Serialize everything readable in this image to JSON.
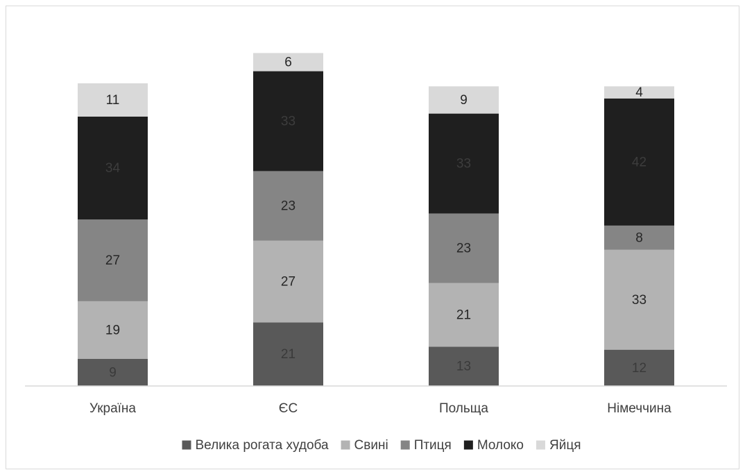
{
  "chart_data": {
    "type": "bar",
    "stacked": true,
    "categories": [
      "Україна",
      "ЄС",
      "Польща",
      "Німеччина"
    ],
    "series": [
      {
        "name": "Велика рогата худоба",
        "color": "#595959",
        "label_color": "#3a3a3a",
        "values": [
          9,
          21,
          13,
          12
        ]
      },
      {
        "name": "Свині",
        "color": "#b3b3b3",
        "label_color": "#262626",
        "values": [
          19,
          27,
          21,
          33
        ]
      },
      {
        "name": "Птиця",
        "color": "#858585",
        "label_color": "#262626",
        "values": [
          27,
          23,
          23,
          8
        ]
      },
      {
        "name": "Молоко",
        "color": "#1f1f1f",
        "label_color": "#3d3d3d",
        "values": [
          34,
          33,
          33,
          42
        ]
      },
      {
        "name": "Яйця",
        "color": "#d9d9d9",
        "label_color": "#262626",
        "values": [
          11,
          6,
          9,
          4
        ]
      }
    ],
    "ylim": [
      0,
      110
    ],
    "grid": false,
    "legend": "bottom",
    "title": "",
    "xlabel": "",
    "ylabel": ""
  }
}
